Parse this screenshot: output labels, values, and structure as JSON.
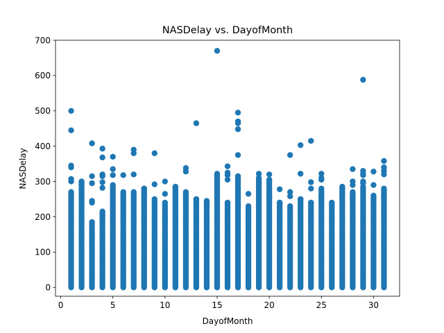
{
  "chart_data": {
    "type": "scatter",
    "title": "NASDelay vs. DayofMonth",
    "xlabel": "DayofMonth",
    "ylabel": "NASDelay",
    "xlim": [
      -0.5,
      32.5
    ],
    "ylim": [
      -25,
      700
    ],
    "xticks": [
      0,
      5,
      10,
      15,
      20,
      25,
      30
    ],
    "yticks": [
      0,
      100,
      200,
      300,
      400,
      500,
      600,
      700
    ],
    "grid": false,
    "color": "#1f77b4",
    "dense_max": [
      270,
      300,
      185,
      215,
      285,
      270,
      270,
      280,
      250,
      240,
      285,
      270,
      250,
      240,
      320,
      240,
      310,
      230,
      310,
      305,
      240,
      230,
      250,
      240,
      280,
      235,
      285,
      270,
      285,
      260,
      280
    ],
    "outliers": [
      {
        "x": 1,
        "y": [
          345,
          340,
          307,
          300,
          445,
          500
        ]
      },
      {
        "x": 2,
        "y": [
          298,
          290,
          265
        ]
      },
      {
        "x": 3,
        "y": [
          408,
          315,
          295,
          245,
          240
        ]
      },
      {
        "x": 4,
        "y": [
          393,
          368,
          320,
          315,
          298,
          282
        ]
      },
      {
        "x": 5,
        "y": [
          370,
          335,
          318,
          290
        ]
      },
      {
        "x": 6,
        "y": [
          318
        ]
      },
      {
        "x": 7,
        "y": [
          390,
          380,
          320
        ]
      },
      {
        "x": 8,
        "y": [
          280
        ]
      },
      {
        "x": 9,
        "y": [
          380,
          292
        ]
      },
      {
        "x": 10,
        "y": [
          300,
          265
        ]
      },
      {
        "x": 11,
        "y": [
          285,
          280,
          270
        ]
      },
      {
        "x": 12,
        "y": [
          338,
          328,
          255
        ]
      },
      {
        "x": 13,
        "y": [
          465,
          250
        ]
      },
      {
        "x": 14,
        "y": [
          245,
          240
        ]
      },
      {
        "x": 15,
        "y": [
          670,
          322
        ]
      },
      {
        "x": 16,
        "y": [
          343,
          325,
          318,
          305,
          240
        ]
      },
      {
        "x": 17,
        "y": [
          495,
          470,
          465,
          448,
          375,
          315,
          312
        ]
      },
      {
        "x": 18,
        "y": [
          265
        ]
      },
      {
        "x": 19,
        "y": [
          322,
          295,
          285,
          250
        ]
      },
      {
        "x": 20,
        "y": [
          320,
          305,
          280,
          265,
          255
        ]
      },
      {
        "x": 21,
        "y": [
          278,
          240,
          235
        ]
      },
      {
        "x": 22,
        "y": [
          375,
          270,
          258
        ]
      },
      {
        "x": 23,
        "y": [
          403,
          322,
          250
        ]
      },
      {
        "x": 24,
        "y": [
          415,
          298,
          280,
          240
        ]
      },
      {
        "x": 25,
        "y": [
          322,
          310,
          305,
          255
        ]
      },
      {
        "x": 26,
        "y": [
          240,
          235
        ]
      },
      {
        "x": 27,
        "y": [
          285,
          270,
          265
        ]
      },
      {
        "x": 28,
        "y": [
          335,
          300,
          290,
          250
        ]
      },
      {
        "x": 29,
        "y": [
          588,
          330,
          322,
          318,
          300,
          295
        ]
      },
      {
        "x": 30,
        "y": [
          328,
          290,
          240
        ]
      },
      {
        "x": 31,
        "y": [
          358,
          340,
          330,
          320,
          272,
          255,
          248,
          215
        ]
      }
    ]
  }
}
